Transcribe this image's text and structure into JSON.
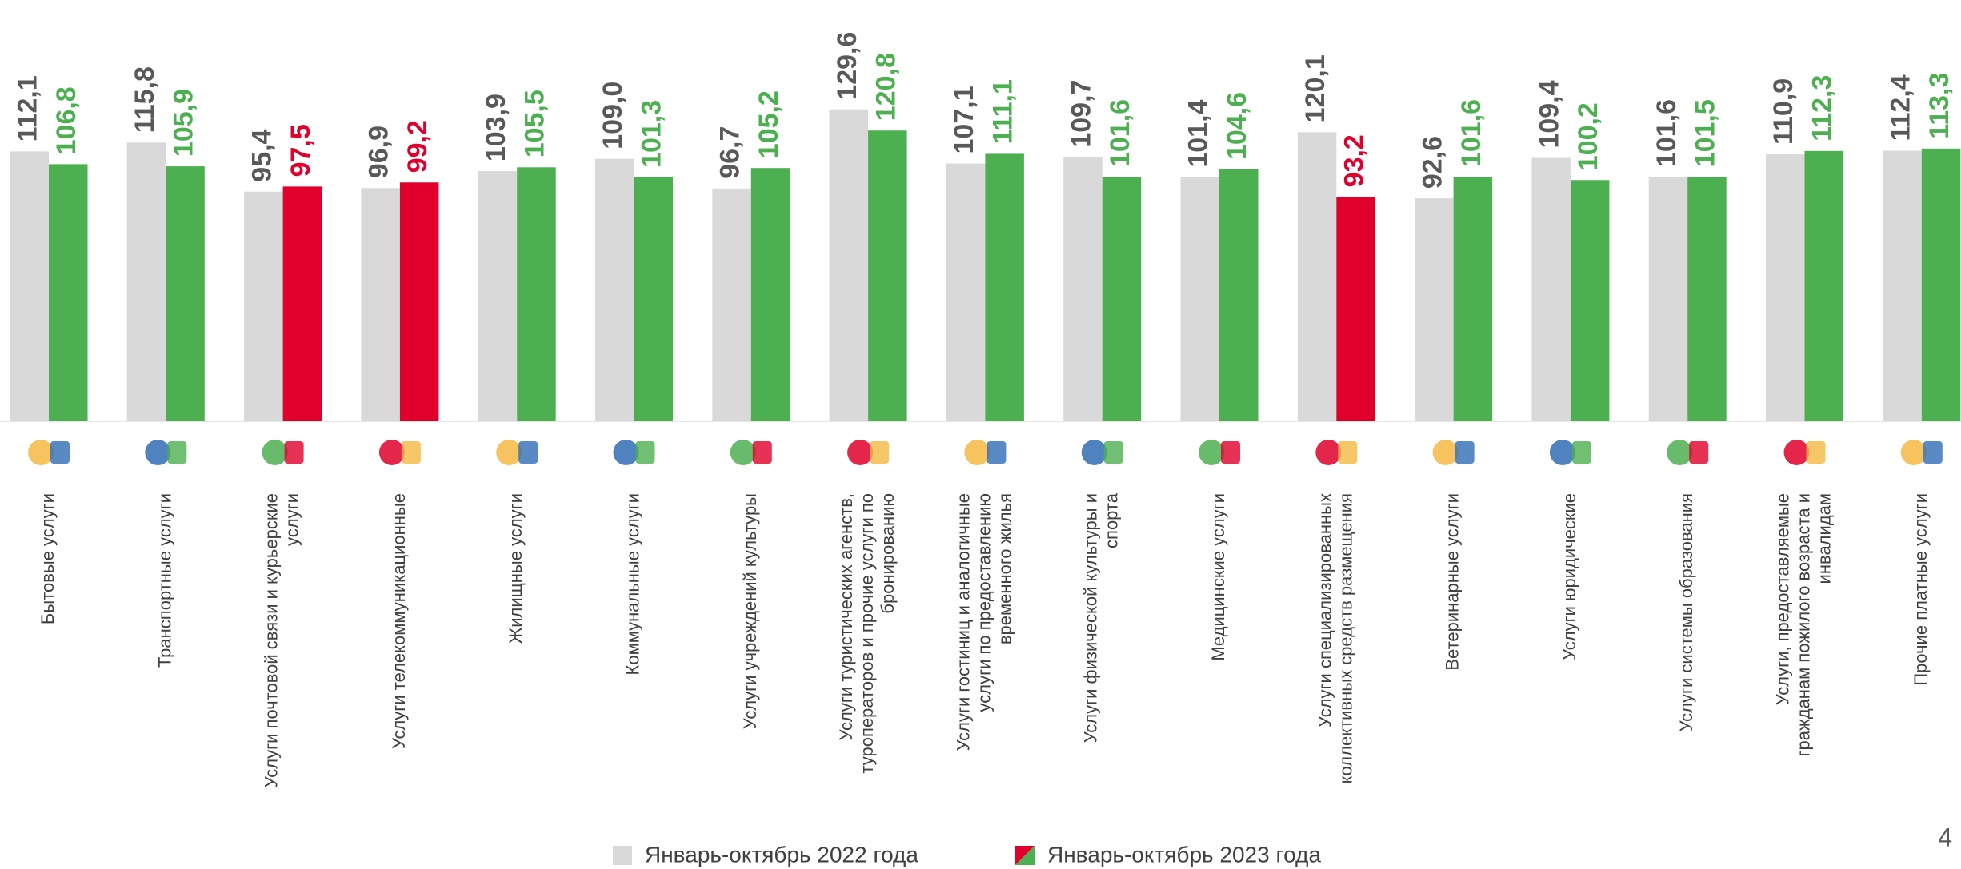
{
  "chart_data": {
    "type": "bar",
    "categories": [
      "Бытовые услуги",
      "Транспортные услуги",
      "Услуги почтовой связи и курьерские услуги",
      "Услуги телекоммуникационные",
      "Жилищные услуги",
      "Коммунальные услуги",
      "Услуги учреждений культуры",
      "Услуги туристических агенств, туроператоров и прочие услуги по бронированию",
      "Услуги гостиниц и аналогичные услуги по предоставлению временного жилья",
      "Услуги физической культуры и спорта",
      "Медицинские услуги",
      "Услуги специализированных коллективных средств размещения",
      "Ветеринарные услуги",
      "Услуги юридические",
      "Услуги системы образования",
      "Услуги, предоставляемые гражданам пожилого возраста и инвалидам",
      "Прочие платные услуги"
    ],
    "series": [
      {
        "name": "Январь-октябрь 2022 года",
        "color": "#d9d9d9",
        "label_color": "#595959",
        "values": [
          112.1,
          115.8,
          95.4,
          96.9,
          103.9,
          109.0,
          96.7,
          129.6,
          107.1,
          109.7,
          101.4,
          120.1,
          92.6,
          109.4,
          101.6,
          110.9,
          112.4
        ],
        "value_labels": [
          "112,1",
          "115,8",
          "95,4",
          "96,9",
          "103,9",
          "109,0",
          "96,7",
          "129,6",
          "107,1",
          "109,7",
          "101,4",
          "120,1",
          "92,6",
          "109,4",
          "101,6",
          "110,9",
          "112,4"
        ]
      },
      {
        "name": "Январь-октябрь 2023 года",
        "colors": [
          "#4caf50",
          "#4caf50",
          "#e0002b",
          "#e0002b",
          "#4caf50",
          "#4caf50",
          "#4caf50",
          "#4caf50",
          "#4caf50",
          "#4caf50",
          "#4caf50",
          "#e0002b",
          "#4caf50",
          "#4caf50",
          "#4caf50",
          "#4caf50",
          "#4caf50"
        ],
        "values": [
          106.8,
          105.9,
          97.5,
          99.2,
          105.5,
          101.3,
          105.2,
          120.8,
          111.1,
          101.6,
          104.6,
          93.2,
          101.6,
          100.2,
          101.5,
          112.3,
          113.3
        ],
        "value_labels": [
          "106,8",
          "105,9",
          "97,5",
          "99,2",
          "105,5",
          "101,3",
          "105,2",
          "120,8",
          "111,1",
          "101,6",
          "104,6",
          "93,2",
          "101,6",
          "100,2",
          "101,5",
          "112,3",
          "113,3"
        ]
      }
    ],
    "ylim": [
      0,
      175
    ],
    "legend": "bottom"
  },
  "page_number": "4"
}
